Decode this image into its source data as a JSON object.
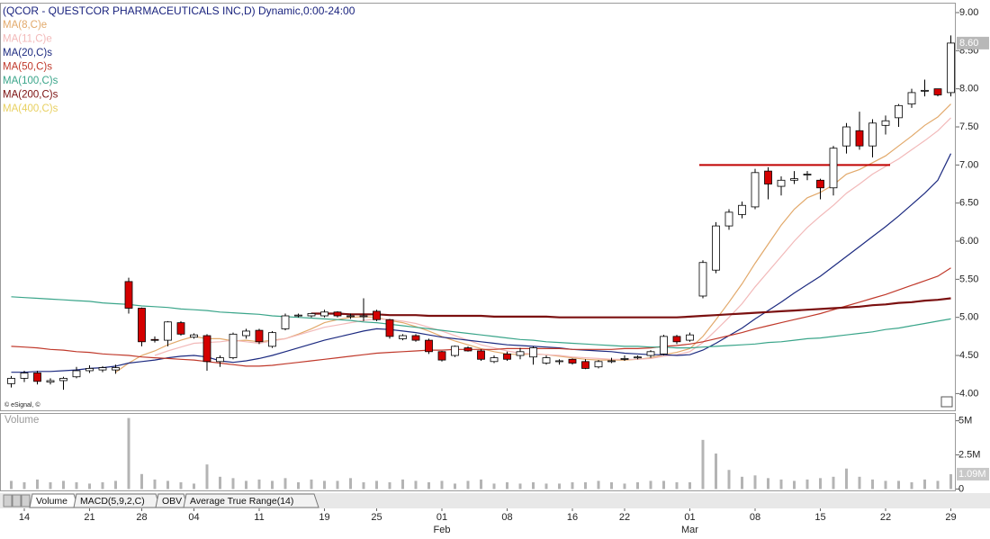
{
  "chart_data": {
    "type": "candlestick",
    "title": "(QCOR - QUESTCOR PHARMACEUTICALS INC,D) Dynamic,0:00-24:00",
    "credit": "© eSignal, ©",
    "categories": [
      null,
      "14",
      null,
      null,
      null,
      null,
      "21",
      null,
      null,
      null,
      "28",
      null,
      null,
      null,
      "04",
      null,
      null,
      null,
      null,
      "11",
      null,
      null,
      null,
      null,
      "19",
      null,
      null,
      null,
      "25",
      null,
      null,
      null,
      null,
      "01",
      null,
      null,
      null,
      null,
      "08",
      null,
      null,
      null,
      null,
      "16",
      null,
      null,
      null,
      "22",
      null,
      null,
      null,
      null,
      "01",
      null,
      null,
      null,
      null,
      "08",
      null,
      null,
      null,
      null,
      "15",
      null,
      null,
      null,
      null,
      "22",
      null,
      null,
      null,
      null,
      "29"
    ],
    "month_categories": [
      null,
      null,
      null,
      null,
      null,
      null,
      null,
      null,
      null,
      null,
      null,
      null,
      null,
      null,
      null,
      null,
      null,
      null,
      null,
      null,
      null,
      null,
      null,
      null,
      null,
      null,
      null,
      null,
      null,
      null,
      null,
      null,
      null,
      "Feb",
      null,
      null,
      null,
      null,
      null,
      null,
      null,
      null,
      null,
      null,
      null,
      null,
      null,
      null,
      null,
      null,
      null,
      null,
      "Mar",
      null,
      null,
      null,
      null,
      null,
      null,
      null,
      null,
      null,
      null,
      null,
      null,
      null,
      null,
      null,
      null,
      null,
      null,
      null
    ],
    "open": [
      4.13,
      4.2,
      4.27,
      4.15,
      4.17,
      4.22,
      4.3,
      4.31,
      4.31,
      5.47,
      5.12,
      4.71,
      4.7,
      4.93,
      4.74,
      4.76,
      4.42,
      4.47,
      4.76,
      4.83,
      4.62,
      4.85,
      5.02,
      5.02,
      5.02,
      5.07,
      5.02,
      5.01,
      5.08,
      4.97,
      4.72,
      4.76,
      4.7,
      4.55,
      4.5,
      4.6,
      4.56,
      4.42,
      4.52,
      4.5,
      4.48,
      4.4,
      4.42,
      4.45,
      4.42,
      4.35,
      4.42,
      4.45,
      4.47,
      4.5,
      4.52,
      4.75,
      4.7,
      5.28,
      5.62,
      6.2,
      6.35,
      6.45,
      6.92,
      6.72,
      6.8,
      6.87,
      6.8,
      6.7,
      7.25,
      7.45,
      7.25,
      7.52,
      7.62,
      7.8,
      7.97,
      8.0,
      7.95
    ],
    "high": [
      4.23,
      4.3,
      4.3,
      4.2,
      4.22,
      4.35,
      4.37,
      4.36,
      4.38,
      5.52,
      5.13,
      4.75,
      4.95,
      4.95,
      4.79,
      4.78,
      4.5,
      4.8,
      4.85,
      4.85,
      4.82,
      5.05,
      5.05,
      5.06,
      5.1,
      5.08,
      5.05,
      5.25,
      5.1,
      4.98,
      4.78,
      4.78,
      4.72,
      4.56,
      4.63,
      4.62,
      4.58,
      4.5,
      4.55,
      4.6,
      4.62,
      4.5,
      4.45,
      4.46,
      4.45,
      4.44,
      4.47,
      4.5,
      4.5,
      4.57,
      4.77,
      4.77,
      4.8,
      5.75,
      6.25,
      6.42,
      6.52,
      6.95,
      6.97,
      6.85,
      6.92,
      6.92,
      6.82,
      7.25,
      7.55,
      7.7,
      7.6,
      7.65,
      7.8,
      8.0,
      8.12,
      8.0,
      8.7
    ],
    "low": [
      4.08,
      4.15,
      4.12,
      4.12,
      4.05,
      4.2,
      4.27,
      4.28,
      4.26,
      5.05,
      4.62,
      4.67,
      4.62,
      4.76,
      4.72,
      4.3,
      4.35,
      4.45,
      4.72,
      4.65,
      4.6,
      4.83,
      5.0,
      5.0,
      5.0,
      5.0,
      4.98,
      4.95,
      4.95,
      4.72,
      4.7,
      4.68,
      4.52,
      4.42,
      4.48,
      4.55,
      4.43,
      4.4,
      4.43,
      4.45,
      4.38,
      4.38,
      4.38,
      4.38,
      4.32,
      4.33,
      4.4,
      4.43,
      4.45,
      4.47,
      4.5,
      4.65,
      4.68,
      5.25,
      5.58,
      6.15,
      6.3,
      6.42,
      6.55,
      6.6,
      6.75,
      6.8,
      6.55,
      6.6,
      7.15,
      7.2,
      7.1,
      7.4,
      7.5,
      7.75,
      7.9,
      7.9,
      7.9
    ],
    "close": [
      4.2,
      4.27,
      4.16,
      4.17,
      4.2,
      4.3,
      4.33,
      4.34,
      4.34,
      5.12,
      4.68,
      4.7,
      4.94,
      4.78,
      4.77,
      4.42,
      4.47,
      4.78,
      4.82,
      4.68,
      4.8,
      5.02,
      5.03,
      5.05,
      5.07,
      5.02,
      5.02,
      5.02,
      4.97,
      4.75,
      4.76,
      4.7,
      4.55,
      4.44,
      4.62,
      4.56,
      4.45,
      4.47,
      4.45,
      4.55,
      4.6,
      4.47,
      4.43,
      4.4,
      4.33,
      4.42,
      4.43,
      4.46,
      4.48,
      4.55,
      4.75,
      4.68,
      4.77,
      5.72,
      6.2,
      6.38,
      6.47,
      6.9,
      6.75,
      6.8,
      6.82,
      6.88,
      6.7,
      7.22,
      7.5,
      7.25,
      7.55,
      7.58,
      7.78,
      7.95,
      7.98,
      7.92,
      8.6
    ],
    "up_color": "#ffffff",
    "down_color": "#d40000",
    "last_price_label": "8.60",
    "ylim": [
      3.78,
      9.13
    ],
    "yticks": [
      {
        "value": 4,
        "label": "4.00"
      },
      {
        "value": 4.5,
        "label": "4.50"
      },
      {
        "value": 5,
        "label": "5.00"
      },
      {
        "value": 5.5,
        "label": "5.50"
      },
      {
        "value": 6,
        "label": "6.00"
      },
      {
        "value": 6.5,
        "label": "6.50"
      },
      {
        "value": 7,
        "label": "7.00"
      },
      {
        "value": 7.5,
        "label": "7.50"
      },
      {
        "value": 8,
        "label": "8.00"
      },
      {
        "value": 8.5,
        "label": "8.50"
      },
      {
        "value": 9,
        "label": "9.00"
      }
    ],
    "grid": false,
    "ma_series": [
      {
        "name": "MA(8,C)e",
        "color": "#e2a96b",
        "values": [
          null,
          null,
          null,
          null,
          null,
          null,
          null,
          null,
          4.28,
          4.4,
          4.5,
          4.56,
          4.64,
          4.7,
          4.75,
          4.72,
          4.72,
          4.69,
          4.7,
          4.68,
          4.7,
          4.72,
          4.78,
          4.85,
          4.93,
          4.97,
          5.0,
          5.01,
          5.0,
          4.96,
          4.93,
          4.88,
          4.82,
          4.75,
          4.69,
          4.64,
          4.59,
          4.55,
          4.52,
          4.51,
          4.52,
          4.51,
          4.49,
          4.47,
          4.45,
          4.44,
          4.44,
          4.44,
          4.45,
          4.47,
          4.51,
          4.54,
          4.59,
          4.75,
          4.97,
          5.2,
          5.44,
          5.71,
          5.96,
          6.21,
          6.42,
          6.57,
          6.64,
          6.74,
          6.88,
          6.94,
          7.03,
          7.12,
          7.25,
          7.38,
          7.52,
          7.63,
          7.8
        ]
      },
      {
        "name": "MA(11,C)e",
        "color": "#f2b9b9",
        "values": [
          null,
          null,
          null,
          null,
          null,
          null,
          null,
          null,
          null,
          null,
          null,
          4.5,
          4.56,
          4.61,
          4.66,
          4.67,
          4.68,
          4.7,
          4.68,
          4.66,
          4.69,
          4.72,
          4.77,
          4.82,
          4.87,
          4.9,
          4.93,
          4.96,
          4.98,
          4.97,
          4.95,
          4.92,
          4.87,
          4.82,
          4.76,
          4.7,
          4.64,
          4.6,
          4.56,
          4.53,
          4.52,
          4.51,
          4.5,
          4.48,
          4.47,
          4.46,
          4.45,
          4.45,
          4.45,
          4.46,
          4.49,
          4.51,
          4.55,
          4.67,
          4.83,
          5.0,
          5.18,
          5.4,
          5.6,
          5.8,
          6.0,
          6.18,
          6.33,
          6.47,
          6.63,
          6.75,
          6.88,
          6.98,
          7.08,
          7.2,
          7.32,
          7.45,
          7.62
        ]
      },
      {
        "name": "MA(20,C)s",
        "color": "#1c2a80",
        "values": [
          4.28,
          4.28,
          4.29,
          4.29,
          4.3,
          4.31,
          4.33,
          4.34,
          4.36,
          4.4,
          4.42,
          4.44,
          4.47,
          4.49,
          4.5,
          4.48,
          4.43,
          4.41,
          4.43,
          4.46,
          4.5,
          4.55,
          4.6,
          4.65,
          4.7,
          4.74,
          4.78,
          4.82,
          4.85,
          4.84,
          4.82,
          4.8,
          4.77,
          4.74,
          4.72,
          4.7,
          4.68,
          4.66,
          4.64,
          4.63,
          4.62,
          4.61,
          4.6,
          4.58,
          4.57,
          4.56,
          4.55,
          4.53,
          4.52,
          4.51,
          4.51,
          4.5,
          4.51,
          4.57,
          4.66,
          4.76,
          4.86,
          4.98,
          5.09,
          5.2,
          5.32,
          5.43,
          5.54,
          5.67,
          5.8,
          5.93,
          6.06,
          6.19,
          6.33,
          6.48,
          6.63,
          6.8,
          7.15
        ]
      },
      {
        "name": "MA(50,C)s",
        "color": "#c0392b",
        "values": [
          4.62,
          4.61,
          4.6,
          4.58,
          4.57,
          4.55,
          4.54,
          4.52,
          4.51,
          4.5,
          4.48,
          4.47,
          4.46,
          4.45,
          4.44,
          4.42,
          4.4,
          4.38,
          4.36,
          4.36,
          4.37,
          4.39,
          4.41,
          4.43,
          4.45,
          4.47,
          4.49,
          4.51,
          4.53,
          4.54,
          4.55,
          4.56,
          4.57,
          4.57,
          4.58,
          4.58,
          4.58,
          4.58,
          4.59,
          4.59,
          4.59,
          4.59,
          4.59,
          4.58,
          4.58,
          4.58,
          4.58,
          4.59,
          4.59,
          4.6,
          4.62,
          4.63,
          4.65,
          4.68,
          4.72,
          4.76,
          4.8,
          4.85,
          4.89,
          4.93,
          4.97,
          5.01,
          5.05,
          5.1,
          5.15,
          5.2,
          5.25,
          5.3,
          5.36,
          5.42,
          5.48,
          5.54,
          5.65
        ]
      },
      {
        "name": "MA(100,C)s",
        "color": "#3aa58a",
        "values": [
          5.27,
          5.26,
          5.25,
          5.24,
          5.23,
          5.22,
          5.21,
          5.19,
          5.18,
          5.17,
          5.15,
          5.14,
          5.13,
          5.11,
          5.1,
          5.09,
          5.07,
          5.06,
          5.05,
          5.04,
          5.02,
          5.01,
          5.0,
          4.99,
          4.98,
          4.97,
          4.96,
          4.94,
          4.93,
          4.91,
          4.89,
          4.87,
          4.85,
          4.83,
          4.81,
          4.79,
          4.77,
          4.75,
          4.73,
          4.71,
          4.7,
          4.68,
          4.67,
          4.66,
          4.65,
          4.64,
          4.63,
          4.62,
          4.62,
          4.61,
          4.61,
          4.6,
          4.6,
          4.61,
          4.62,
          4.63,
          4.64,
          4.65,
          4.67,
          4.68,
          4.7,
          4.72,
          4.73,
          4.75,
          4.77,
          4.79,
          4.81,
          4.84,
          4.86,
          4.89,
          4.92,
          4.95,
          4.98
        ]
      },
      {
        "name": "MA(200,C)s",
        "color": "#7b1010",
        "values": [
          null,
          null,
          null,
          null,
          null,
          null,
          null,
          null,
          null,
          null,
          null,
          null,
          null,
          null,
          null,
          null,
          null,
          null,
          null,
          null,
          null,
          null,
          null,
          5.05,
          5.05,
          5.05,
          5.04,
          5.04,
          5.04,
          5.03,
          5.03,
          5.03,
          5.02,
          5.02,
          5.02,
          5.02,
          5.02,
          5.01,
          5.01,
          5.01,
          5.01,
          5.01,
          5.0,
          5.0,
          5.0,
          5.0,
          5.0,
          5.0,
          5.0,
          5.0,
          5.0,
          5.0,
          5.01,
          5.02,
          5.03,
          5.04,
          5.05,
          5.06,
          5.07,
          5.08,
          5.09,
          5.1,
          5.11,
          5.12,
          5.13,
          5.14,
          5.16,
          5.17,
          5.19,
          5.2,
          5.22,
          5.23,
          5.25
        ]
      },
      {
        "name": "MA(400,C)s",
        "color": "#e8d060"
      }
    ],
    "resistance_line": {
      "value": 7.0,
      "color": "#c00000"
    },
    "volume": {
      "title": "Volume",
      "color": "#b4b4b4",
      "values": [
        600000,
        500000,
        700000,
        500000,
        600000,
        500000,
        400000,
        500000,
        600000,
        5200000,
        1100000,
        700000,
        600000,
        500000,
        400000,
        1800000,
        900000,
        800000,
        600000,
        700000,
        600000,
        800000,
        500000,
        700000,
        600000,
        600000,
        800000,
        500000,
        600000,
        500000,
        700000,
        600000,
        500000,
        600000,
        400000,
        600000,
        700000,
        400000,
        500000,
        400000,
        500000,
        400000,
        400000,
        500000,
        500000,
        600000,
        500000,
        400000,
        500000,
        600000,
        600000,
        500000,
        500000,
        3600000,
        2600000,
        1400000,
        900000,
        1000000,
        800000,
        700000,
        600000,
        700000,
        800000,
        900000,
        1500000,
        900000,
        700000,
        600000,
        600000,
        500000,
        700000,
        600000,
        1090000
      ],
      "value_labels": [
        null,
        null,
        null,
        null,
        null,
        null,
        null,
        null,
        null,
        null,
        null,
        null,
        null,
        null,
        null,
        null,
        null,
        null,
        null,
        null,
        null,
        null,
        null,
        null,
        null,
        null,
        null,
        null,
        null,
        null,
        null,
        null,
        null,
        null,
        null,
        null,
        null,
        null,
        null,
        null,
        null,
        null,
        null,
        null,
        null,
        null,
        null,
        null,
        null,
        null,
        null,
        null,
        null,
        null,
        null,
        null,
        null,
        null,
        null,
        null,
        null,
        null,
        null,
        null,
        null,
        null,
        null,
        null,
        null,
        null,
        null,
        null,
        "1.09M"
      ],
      "ylim": [
        0,
        5500000
      ],
      "yticks": [
        0,
        {
          "value": 2500000,
          "label": "2.5M"
        },
        {
          "value": 5000000,
          "label": "5M"
        }
      ]
    },
    "tabs": [
      "Volume",
      "MACD(5,9,2,C)",
      "OBV",
      "Average True Range(14)"
    ]
  }
}
